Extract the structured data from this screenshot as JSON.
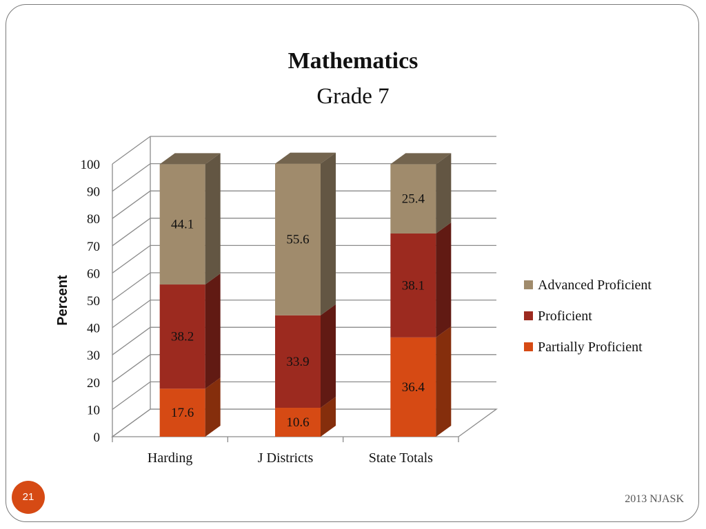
{
  "slide": {
    "page_number": "21",
    "footer": "2013 NJASK"
  },
  "colors": {
    "Advanced Proficient": "#a08b6c",
    "Proficient": "#9c2a1f",
    "Partially Proficient": "#d64a14"
  },
  "chart_data": {
    "type": "bar",
    "stacked": true,
    "three_d": true,
    "title": "Mathematics",
    "subtitle": "Grade 7",
    "xlabel": "",
    "ylabel": "Percent",
    "ylim": [
      0,
      100
    ],
    "yticks": [
      "0",
      "10",
      "20",
      "30",
      "40",
      "50",
      "60",
      "70",
      "80",
      "90",
      "100"
    ],
    "categories": [
      "Harding",
      "J Districts",
      "State Totals"
    ],
    "series": [
      {
        "name": "Partially Proficient",
        "values": [
          17.6,
          10.6,
          36.4
        ]
      },
      {
        "name": "Proficient",
        "values": [
          38.2,
          33.9,
          38.1
        ]
      },
      {
        "name": "Advanced Proficient",
        "values": [
          44.1,
          55.6,
          25.4
        ]
      }
    ],
    "legend_order": [
      "Advanced Proficient",
      "Proficient",
      "Partially Proficient"
    ],
    "legend_position": "right",
    "grid": true
  }
}
